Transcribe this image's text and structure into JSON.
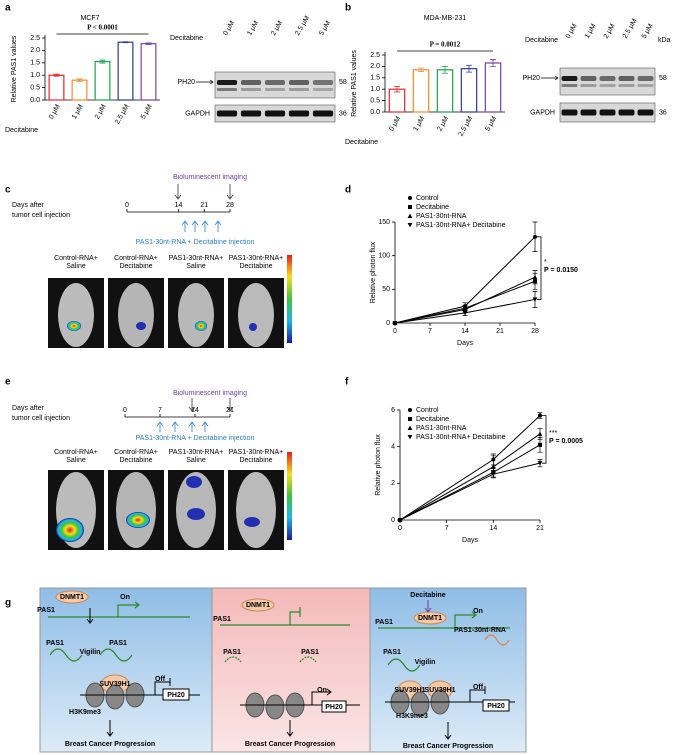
{
  "panel_letters": [
    "a",
    "b",
    "c",
    "d",
    "e",
    "f",
    "g"
  ],
  "chart_data": [
    {
      "type": "bar",
      "title": "MCF7",
      "annotation": "P < 0.0001",
      "x_label": "Decitabine",
      "y_label": "Relative PAS1 values",
      "categories": [
        "0 μM",
        "1 μM",
        "2 μM",
        "2.5 μM",
        "5 μM"
      ],
      "values": [
        1.0,
        0.8,
        1.55,
        2.33,
        2.27
      ],
      "errors": [
        0.04,
        0.05,
        0.06,
        0.02,
        0.03
      ],
      "colors": [
        "#e8262b",
        "#f08c2a",
        "#1aa14a",
        "#2e3a93",
        "#7b3fa0"
      ],
      "ylim": [
        0,
        2.5
      ],
      "yticks": [
        {
          "value": 0,
          "label": "0.0"
        },
        0.5,
        {
          "value": 1,
          "label": "1.0"
        },
        1.5,
        {
          "value": 2,
          "label": "2.0"
        },
        2.5
      ]
    },
    {
      "type": "bar",
      "title": "MDA-MB-231",
      "annotation": "P = 0.0012",
      "x_label": "Decitabine",
      "y_label": "Relative PAS1 values",
      "categories": [
        "0 μM",
        "1 μM",
        "2 μM",
        "2.5 μM",
        "5 μM"
      ],
      "values": [
        1.0,
        1.85,
        1.85,
        1.9,
        2.15
      ],
      "errors": [
        0.12,
        0.08,
        0.15,
        0.15,
        0.15
      ],
      "colors": [
        "#e8262b",
        "#f08c2a",
        "#1aa14a",
        "#2e3a93",
        "#7b3fa0"
      ],
      "ylim": [
        0,
        2.5
      ],
      "yticks": [
        {
          "value": 0,
          "label": "0.0"
        },
        0.5,
        {
          "value": 1,
          "label": "1.0"
        },
        1.5,
        {
          "value": 2,
          "label": "2.0"
        },
        2.5
      ]
    },
    {
      "type": "line",
      "x_label": "Days",
      "y_label": "Relative photon flux",
      "annotations": [
        "*",
        "P = 0.0150"
      ],
      "legend": "upper left",
      "x": [
        0,
        14,
        28
      ],
      "xlim": [
        0,
        28
      ],
      "xticks": [
        0,
        7,
        14,
        21,
        28
      ],
      "ylim": [
        0,
        150
      ],
      "yticks": [
        0,
        50,
        100,
        150
      ],
      "series": [
        {
          "name": "Control",
          "color": "#000000",
          "marker": "circle",
          "values": [
            0,
            25,
            128
          ],
          "errors": [
            0,
            5,
            22
          ]
        },
        {
          "name": "Decitabine",
          "color": "#000000",
          "marker": "square",
          "values": [
            0,
            22,
            62
          ],
          "errors": [
            0,
            4,
            12
          ]
        },
        {
          "name": "PAS1-30nt-RNA",
          "color": "#000000",
          "marker": "triangle-up",
          "values": [
            0,
            20,
            68
          ],
          "errors": [
            0,
            5,
            10
          ]
        },
        {
          "name": "PAS1-30nt-RNA+ Decitabine",
          "color": "#000000",
          "marker": "triangle-down",
          "values": [
            0,
            15,
            35
          ],
          "errors": [
            0,
            4,
            12
          ]
        }
      ]
    },
    {
      "type": "line",
      "x_label": "Days",
      "y_label": "Relative photon flux",
      "annotations": [
        "***",
        "P = 0.0005"
      ],
      "legend": "upper left",
      "x": [
        0,
        14,
        21
      ],
      "xlim": [
        0,
        21
      ],
      "xticks": [
        0,
        7,
        14,
        21
      ],
      "ylim": [
        0,
        6
      ],
      "yticks": [
        0,
        2,
        4,
        6
      ],
      "series": [
        {
          "name": "Control",
          "color": "#000000",
          "marker": "circle",
          "values": [
            0,
            3.3,
            5.7
          ],
          "errors": [
            0,
            0.3,
            0.15
          ]
        },
        {
          "name": "Decitabine",
          "color": "#000000",
          "marker": "square",
          "values": [
            0,
            2.6,
            4.1
          ],
          "errors": [
            0,
            0.25,
            0.4
          ]
        },
        {
          "name": "PAS1-30nt-RNA",
          "color": "#000000",
          "marker": "triangle-up",
          "values": [
            0,
            2.9,
            4.7
          ],
          "errors": [
            0,
            0.6,
            0.3
          ]
        },
        {
          "name": "PAS1-30nt-RNA+ Decitabine",
          "color": "#000000",
          "marker": "triangle-down",
          "values": [
            0,
            2.5,
            3.1
          ],
          "errors": [
            0,
            0.2,
            0.2
          ]
        }
      ]
    }
  ],
  "blots": [
    {
      "treatment": "Decitabine",
      "lanes": [
        "0 μM",
        "1 μM",
        "2 μM",
        "2.5 μM",
        "5 μM"
      ],
      "target": "PH20",
      "loading": "GAPDH",
      "target_kda": "58",
      "loading_kda": "36"
    },
    {
      "treatment": "Decitabine",
      "lanes": [
        "0 μM",
        "1 μM",
        "2 μM",
        "2.5 μM",
        "5 μM"
      ],
      "target": "PH20",
      "loading": "GAPDH",
      "target_kda": "58",
      "loading_kda": "36",
      "kda_header": "kDa"
    }
  ],
  "timelines": [
    {
      "axis_label": [
        "Days after",
        "tumor cell injection"
      ],
      "ticks": [
        0,
        14,
        21,
        28
      ],
      "imaging": "Bioluminescent imaging",
      "injection": "PAS1-30nt-RNA + Decitabine injection",
      "groups": [
        [
          "Control-RNA+",
          "Saline"
        ],
        [
          "Control-RNA+",
          "Decitabine"
        ],
        [
          "PAS1-30nt-RNA+",
          "Saline"
        ],
        [
          "PAS1-30nt-RNA+",
          "Decitabine"
        ]
      ]
    },
    {
      "axis_label": [
        "Days after",
        "tumor cell injection"
      ],
      "ticks": [
        0,
        7,
        14,
        21
      ],
      "imaging": "Bioluminescent imaging",
      "injection": "PAS1-30nt-RNA + Decitabine injection",
      "groups": [
        [
          "Control-RNA+",
          "Saline"
        ],
        [
          "Control-RNA+",
          "Decitabine"
        ],
        [
          "PAS1-30nt-RNA+",
          "Saline"
        ],
        [
          "PAS1-30nt-RNA+",
          "Decitabine"
        ]
      ]
    }
  ],
  "model": {
    "boxes": [
      {
        "labels": [
          "DNMT1",
          "On",
          "PAS1",
          "PAS1",
          "Vigilin",
          "PAS1",
          "SUV39H1",
          "Off",
          "PH20",
          "H3K9me3",
          "Breast Cancer Progression"
        ]
      },
      {
        "labels": [
          "DNMT1",
          "PAS1",
          "PAS1",
          "PAS1",
          "On",
          "PH20",
          "Breast Cancer Progression"
        ]
      },
      {
        "labels": [
          "Decitabine",
          "DNMT1",
          "On",
          "PAS1",
          "PAS1-30nt-RNA",
          "PAS1",
          "Vigilin",
          "SUV39H1",
          "SUV39H1",
          "Off",
          "PH20",
          "H3K9me3",
          "Breast Cancer Progression"
        ]
      }
    ]
  }
}
